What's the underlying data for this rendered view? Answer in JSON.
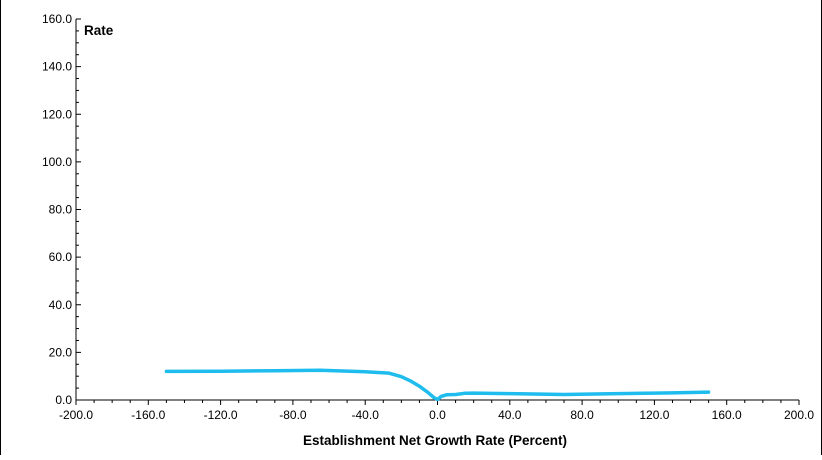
{
  "chart_data": {
    "type": "line",
    "title": "",
    "xlabel": "Establishment Net Growth Rate (Percent)",
    "ylabel": "Rate",
    "xlim": [
      -200,
      200
    ],
    "ylim": [
      0,
      160
    ],
    "xticks": [
      "-200.0",
      "-160.0",
      "-120.0",
      "-80.0",
      "-40.0",
      "0.0",
      "40.0",
      "80.0",
      "120.0",
      "160.0",
      "200.0"
    ],
    "yticks": [
      "0.0",
      "20.0",
      "40.0",
      "60.0",
      "80.0",
      "100.0",
      "120.0",
      "140.0",
      "160.0"
    ],
    "grid": false,
    "legend": "none",
    "series": [
      {
        "color": "#1fbcee",
        "x": [
          -150,
          -120,
          -90,
          -65,
          -40,
          -27,
          -20,
          -15,
          -10,
          -5,
          -2,
          0,
          2,
          5,
          10,
          15,
          20,
          40,
          70,
          100,
          130,
          150
        ],
        "y": [
          12.0,
          12.1,
          12.3,
          12.5,
          11.9,
          11.3,
          9.8,
          8.0,
          5.8,
          3.0,
          1.0,
          0.2,
          1.5,
          2.2,
          2.3,
          2.8,
          2.9,
          2.7,
          2.3,
          2.7,
          3.0,
          3.3
        ]
      }
    ]
  }
}
